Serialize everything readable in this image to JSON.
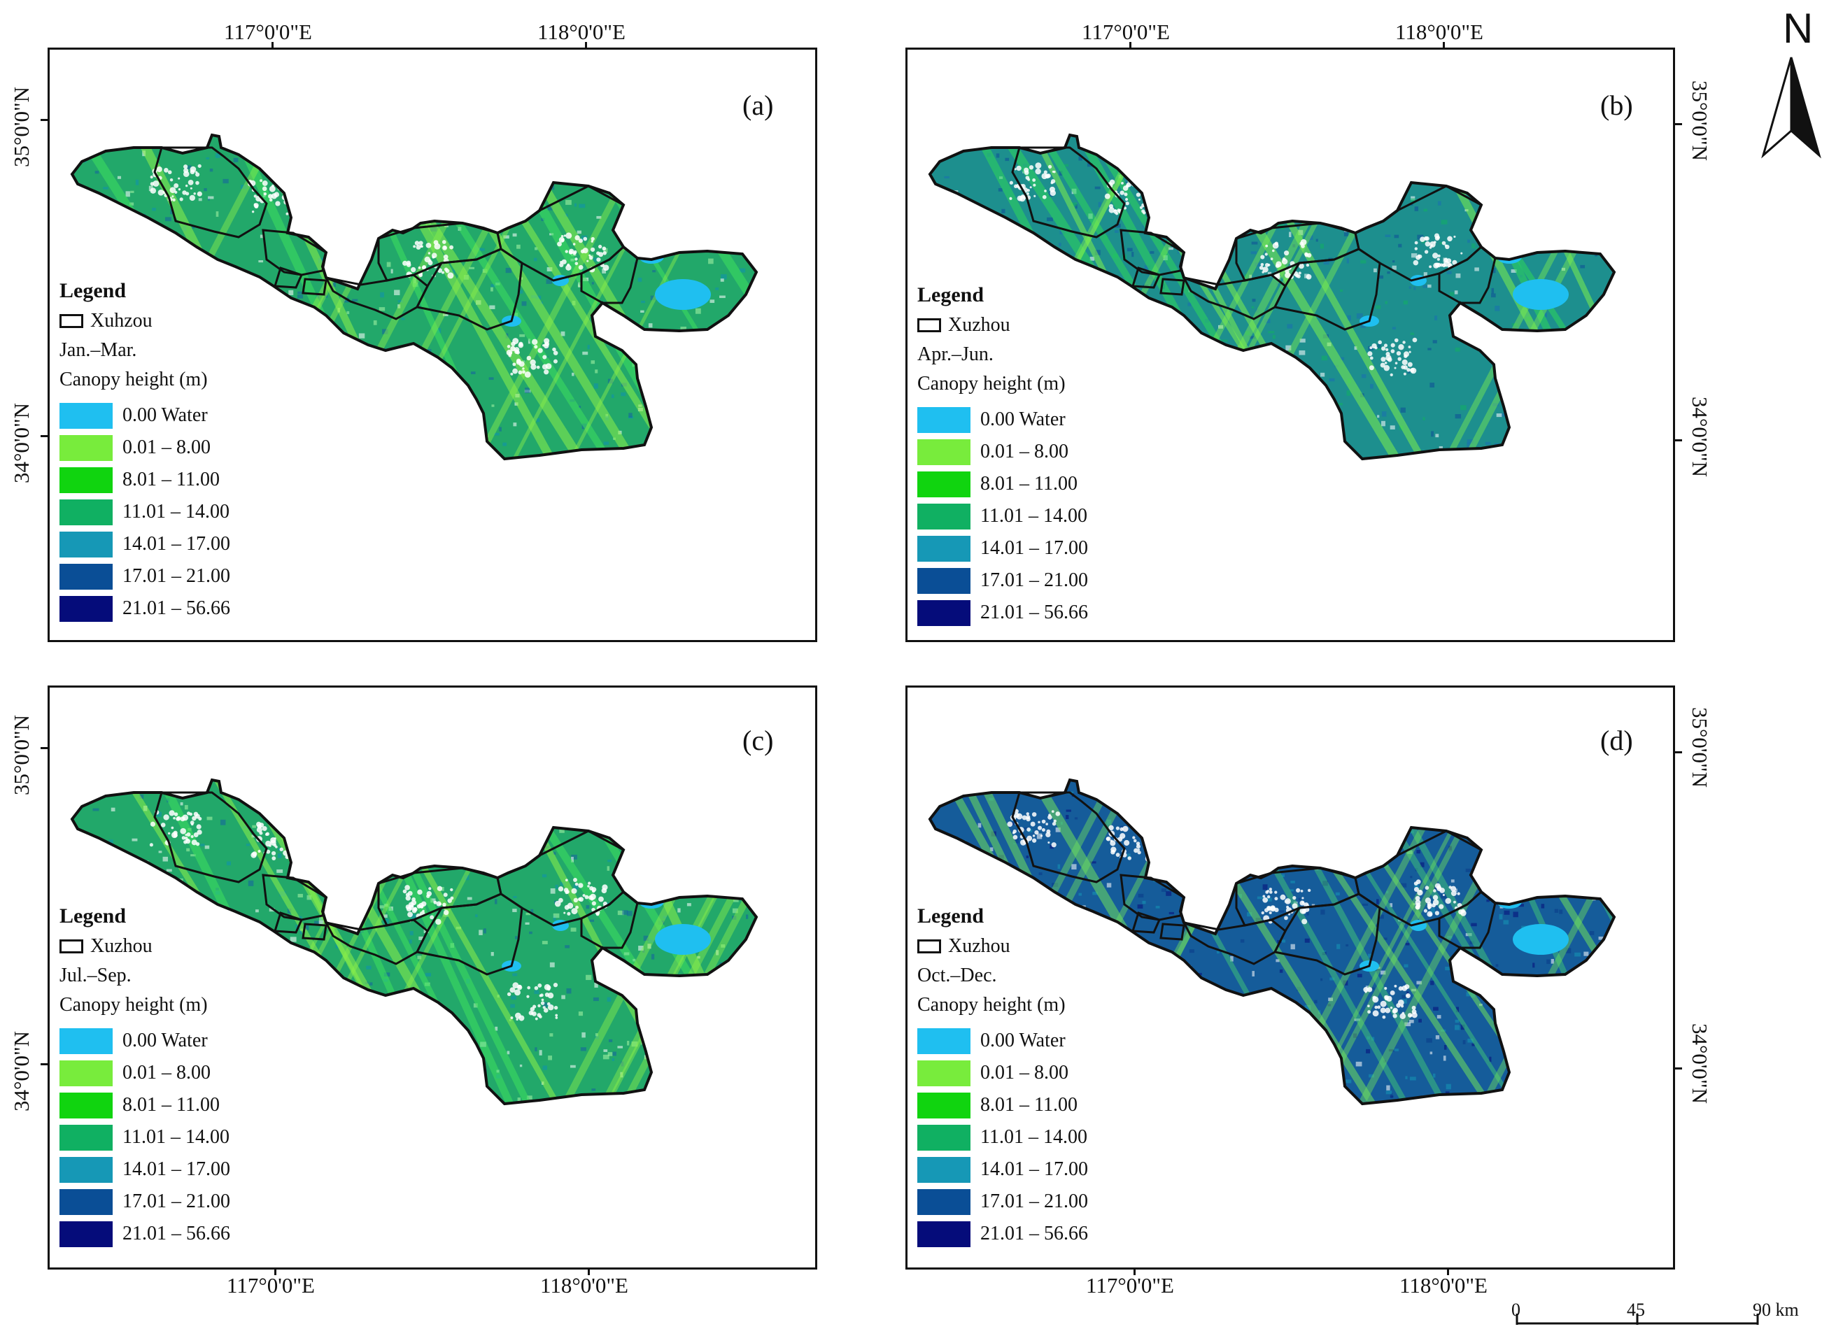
{
  "panels": [
    {
      "id": "a",
      "label": "(a)",
      "period": "Jan.–Mar.",
      "boundary_label": "Xuhzou",
      "tone": "light"
    },
    {
      "id": "b",
      "label": "(b)",
      "period": "Apr.–Jun.",
      "boundary_label": "Xuzhou",
      "tone": "mixed"
    },
    {
      "id": "c",
      "label": "(c)",
      "period": "Jul.–Sep.",
      "boundary_label": "Xuzhou",
      "tone": "light"
    },
    {
      "id": "d",
      "label": "(d)",
      "period": "Oct.–Dec.",
      "boundary_label": "Xuzhou",
      "tone": "dark"
    }
  ],
  "legend": {
    "title": "Legend",
    "field": "Canopy height (m)",
    "classes": [
      {
        "label": "0.00 Water",
        "color": "#1fbff0"
      },
      {
        "label": "0.01 – 8.00",
        "color": "#78ec3c"
      },
      {
        "label": "8.01 – 11.00",
        "color": "#10d40f"
      },
      {
        "label": "11.01 – 14.00",
        "color": "#10b062"
      },
      {
        "label": "14.01 – 17.00",
        "color": "#1698b6"
      },
      {
        "label": "17.01 – 21.00",
        "color": "#0a4e96"
      },
      {
        "label": "21.01 – 56.66",
        "color": "#050c7a"
      }
    ]
  },
  "graticule": {
    "lon_labels": [
      "117°0'0\"E",
      "118°0'0\"E"
    ],
    "lat_labels": [
      "35°0'0\"N",
      "34°0'0\"N"
    ]
  },
  "north_arrow": {
    "label": "N"
  },
  "scale_bar": {
    "labels": [
      "0",
      "45",
      "90 km"
    ]
  }
}
